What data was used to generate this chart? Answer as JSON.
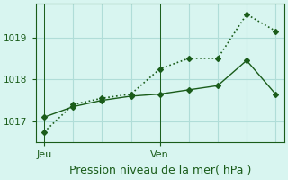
{
  "title": "Pression niveau de la mer( hPa )",
  "bg_color": "#d8f5f0",
  "grid_color": "#b0ddd8",
  "line_color_dark": "#1a5c1a",
  "ylim": [
    1016.5,
    1019.8
  ],
  "yticks": [
    1017,
    1018,
    1019
  ],
  "xlabel_ticks": [
    0,
    4
  ],
  "xlabel_labels": [
    "Jeu",
    "Ven"
  ],
  "series1_x": [
    0,
    1,
    2,
    3,
    4,
    5,
    6,
    7,
    8
  ],
  "series1_y": [
    1016.75,
    1017.4,
    1017.55,
    1017.65,
    1018.25,
    1018.5,
    1018.5,
    1019.55,
    1019.15
  ],
  "series2_x": [
    0,
    1,
    2,
    3,
    4,
    5,
    6,
    7,
    8
  ],
  "series2_y": [
    1017.1,
    1017.35,
    1017.5,
    1017.6,
    1017.65,
    1017.75,
    1017.85,
    1018.45,
    1017.65
  ],
  "vline_x": [
    0,
    4
  ],
  "marker_size": 3,
  "linewidth1": 1.2,
  "linewidth2": 1.0,
  "title_fontsize": 9,
  "tick_fontsize": 7.5,
  "xlabel_fontsize": 8
}
